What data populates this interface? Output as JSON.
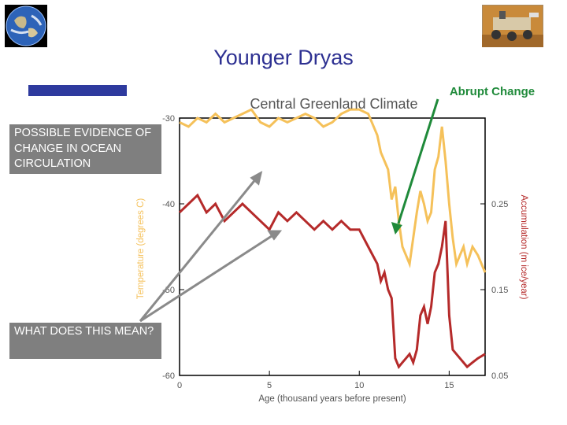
{
  "slide": {
    "title": "Younger Dryas",
    "icons": [
      "earth-globe-icon",
      "mars-rover-icon"
    ]
  },
  "notes": {
    "ocean": "POSSIBLE EVIDENCE OF CHANGE IN OCEAN CIRCULATION",
    "meaning": "WHAT DOES THIS MEAN?"
  },
  "colors": {
    "title": "#2e3192",
    "bar": "#2e3a9e",
    "note_bg": "#7f7f7f",
    "temperature": "#f5c15a",
    "accumulation": "#b52a2a",
    "abrupt": "#1f8a3a",
    "arrow": "#8a8a8a"
  },
  "chart_data": {
    "type": "line",
    "title": "Central Greenland Climate",
    "annotation": "Abrupt Change",
    "annotation_age": 12.0,
    "xlabel": "Age (thousand years before present)",
    "ylabel": "Temperature (degrees C)",
    "y2label": "Accumulation (m ice/year)",
    "xlim": [
      0,
      17
    ],
    "ylim": [
      -60,
      -30
    ],
    "y2lim": [
      0.05,
      0.35
    ],
    "xticks": [
      0,
      5,
      10,
      15
    ],
    "xtick_labels": [
      "0",
      "5",
      "10",
      "15"
    ],
    "yticks": [
      -60,
      -50,
      -40,
      -30
    ],
    "ytick_labels": [
      "-60",
      "-50",
      "-40",
      "-30"
    ],
    "y2ticks": [
      0.05,
      0.15,
      0.25
    ],
    "y2tick_labels": [
      "0.05",
      "0.15",
      "0.25"
    ],
    "series": [
      {
        "name": "Temperature",
        "axis": "left",
        "x": [
          0,
          0.5,
          1,
          1.5,
          2,
          2.5,
          3,
          3.5,
          4,
          4.5,
          5,
          5.5,
          6,
          6.5,
          7,
          7.5,
          8,
          8.5,
          9,
          9.5,
          10,
          10.5,
          10.8,
          11,
          11.2,
          11.4,
          11.6,
          11.8,
          12,
          12.2,
          12.4,
          12.6,
          12.8,
          13,
          13.2,
          13.4,
          13.6,
          13.8,
          14,
          14.2,
          14.4,
          14.6,
          14.8,
          15,
          15.2,
          15.4,
          15.6,
          15.8,
          16,
          16.3,
          16.6,
          17
        ],
        "values": [
          -30.5,
          -31,
          -30,
          -30.5,
          -29.5,
          -30.5,
          -30,
          -29.5,
          -29,
          -30.5,
          -31,
          -30,
          -30.5,
          -30,
          -29.5,
          -30,
          -31,
          -30.5,
          -29.5,
          -29,
          -29,
          -29.5,
          -31,
          -32,
          -34,
          -35,
          -36,
          -39.5,
          -38,
          -42,
          -45,
          -46,
          -47,
          -44,
          -41,
          -38.5,
          -40,
          -42,
          -41,
          -36,
          -34.5,
          -31,
          -35,
          -40,
          -44,
          -47,
          -46,
          -45,
          -47,
          -45,
          -46,
          -48
        ]
      },
      {
        "name": "Accumulation",
        "axis": "right",
        "x": [
          0,
          0.5,
          1,
          1.5,
          2,
          2.5,
          3,
          3.5,
          4,
          4.5,
          5,
          5.5,
          6,
          6.5,
          7,
          7.5,
          8,
          8.5,
          9,
          9.5,
          10,
          10.5,
          11,
          11.2,
          11.4,
          11.6,
          11.8,
          12,
          12.2,
          12.4,
          12.6,
          12.8,
          13,
          13.2,
          13.4,
          13.6,
          13.8,
          14,
          14.2,
          14.4,
          14.6,
          14.8,
          15,
          15.2,
          15.4,
          15.6,
          15.8,
          16,
          16.3,
          16.6,
          17
        ],
        "values": [
          0.24,
          0.25,
          0.26,
          0.24,
          0.25,
          0.23,
          0.24,
          0.25,
          0.24,
          0.23,
          0.22,
          0.24,
          0.23,
          0.24,
          0.23,
          0.22,
          0.23,
          0.22,
          0.23,
          0.22,
          0.22,
          0.2,
          0.18,
          0.16,
          0.17,
          0.15,
          0.14,
          0.07,
          0.06,
          0.065,
          0.07,
          0.075,
          0.065,
          0.08,
          0.12,
          0.13,
          0.11,
          0.13,
          0.17,
          0.18,
          0.2,
          0.23,
          0.12,
          0.08,
          0.075,
          0.07,
          0.065,
          0.06,
          0.065,
          0.07,
          0.075
        ]
      }
    ]
  }
}
